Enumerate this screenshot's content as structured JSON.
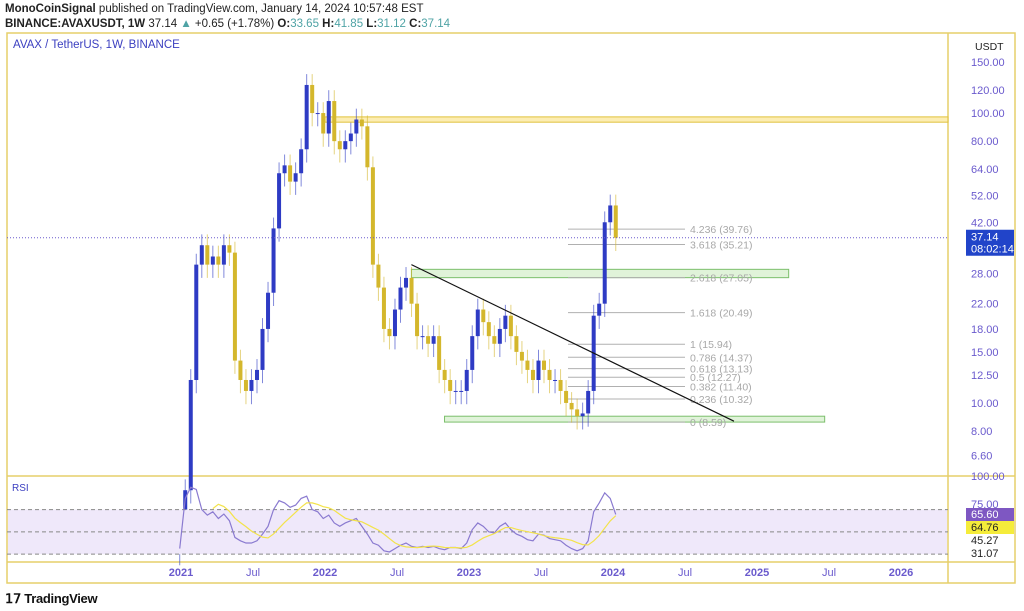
{
  "header": {
    "author": "MonoCoinSignal",
    "published": "published on TradingView.com, January 14, 2024 10:57:48 EST",
    "symbol": "BINANCE:AVAXUSDT, 1W",
    "last": "37.14",
    "change_arrow": "▲",
    "change": "+0.65 (+1.78%)",
    "o_label": "O:",
    "o": "33.65",
    "h_label": "H:",
    "h": "41.85",
    "l_label": "L:",
    "l": "31.12",
    "c_label": "C:",
    "c": "37.14"
  },
  "legend_title": "AVAX / TetherUS, 1W, BINANCE",
  "brand": "TradingView",
  "colors": {
    "up": "#2e3bc4",
    "down": "#d4b72c",
    "frame": "#e6cf6a",
    "axis_text": "#6a5acd",
    "price_tag": "#2144c9",
    "rsi_line": "#8a7ad0",
    "rsi_ma": "#f3e34a",
    "rsi_tag": "#7e57c2",
    "rsi_ma_tag": "#f5ec3a",
    "rsi_band": "#efe8fa",
    "zone_yellow": "#fbe8a0",
    "zone_green": "#d8f0d0"
  },
  "chart_data": [
    {
      "type": "candlestick",
      "title": "AVAX / TetherUS, 1W, BINANCE",
      "scale": "log",
      "ylabel": "USDT",
      "ylim": [
        5.5,
        165
      ],
      "xlim": [
        "2020-12",
        "2026-07"
      ],
      "y_ticks": [
        "150.00",
        "120.00",
        "100.00",
        "80.00",
        "64.00",
        "52.00",
        "42.00",
        "28.00",
        "22.00",
        "18.00",
        "15.00",
        "12.50",
        "10.00",
        "8.00",
        "6.60"
      ],
      "y_tick_values": [
        150,
        120,
        100,
        80,
        64,
        52,
        42,
        28,
        22,
        18,
        15,
        12.5,
        10,
        8,
        6.6
      ],
      "x_ticks": [
        {
          "label": "2021",
          "t": 2021.0
        },
        {
          "label": "Jul",
          "t": 2021.5
        },
        {
          "label": "2022",
          "t": 2022.0
        },
        {
          "label": "Jul",
          "t": 2022.5
        },
        {
          "label": "2023",
          "t": 2023.0
        },
        {
          "label": "Jul",
          "t": 2023.5
        },
        {
          "label": "2024",
          "t": 2024.0
        },
        {
          "label": "Jul",
          "t": 2024.5
        },
        {
          "label": "2025",
          "t": 2025.0
        },
        {
          "label": "Jul",
          "t": 2025.5
        },
        {
          "label": "2026",
          "t": 2026.0
        }
      ],
      "start": "2020-12-28",
      "interval_weeks": 2,
      "closes": [
        3.6,
        5,
        12,
        30,
        35,
        30,
        32,
        30,
        35,
        33,
        14,
        12,
        11,
        12,
        13,
        18,
        24,
        40,
        62,
        66,
        58,
        62,
        75,
        125,
        100,
        100,
        85,
        110,
        80,
        75,
        80,
        85,
        95,
        90,
        65,
        30,
        25,
        18,
        17,
        21,
        25,
        27,
        22,
        17,
        17,
        16,
        17,
        13,
        12,
        11,
        11,
        11,
        13,
        17,
        21,
        19,
        17,
        16,
        18,
        20,
        17,
        15,
        14,
        13,
        12,
        14,
        13,
        12,
        12,
        11,
        10,
        9.5,
        9,
        9.2,
        11,
        20,
        22,
        42,
        48,
        37.14
      ],
      "last_price": {
        "value": "37.14",
        "countdown": "08:02:14"
      },
      "zones": [
        {
          "color": "yellow",
          "from_t": 2022.0,
          "to_t": 2026.95,
          "low": 93,
          "high": 97
        },
        {
          "color": "green",
          "from_t": 2022.6,
          "to_t": 2025.22,
          "low": 27.05,
          "high": 28.9
        },
        {
          "color": "green",
          "from_t": 2022.83,
          "to_t": 2025.47,
          "low": 8.59,
          "high": 9.0
        }
      ],
      "trendline": {
        "from": {
          "t": 2022.6,
          "price": 30
        },
        "to": {
          "t": 2024.84,
          "price": 8.65
        }
      },
      "fib_levels": [
        {
          "label": "4.236 (39.76)",
          "price": 39.76
        },
        {
          "label": "3.618 (35.21)",
          "price": 35.21
        },
        {
          "label": "2.618 (27.05)",
          "price": 27.05
        },
        {
          "label": "1.618 (20.49)",
          "price": 20.49
        },
        {
          "label": "1 (15.94)",
          "price": 15.94
        },
        {
          "label": "0.786 (14.37)",
          "price": 14.37
        },
        {
          "label": "0.618 (13.13)",
          "price": 13.13
        },
        {
          "label": "0.5 (12.27)",
          "price": 12.27
        },
        {
          "label": "0.382 (11.40)",
          "price": 11.4
        },
        {
          "label": "0.236 (10.32)",
          "price": 10.32
        },
        {
          "label": "0 (8.59)",
          "price": 8.59
        }
      ]
    },
    {
      "type": "line",
      "title": "RSI",
      "ylim": [
        25,
        100
      ],
      "y_ticks": [
        "100.00",
        "75.00"
      ],
      "y_tick_values": [
        100,
        75
      ],
      "bands": [
        70,
        50,
        30
      ],
      "values": [
        35,
        80,
        90,
        88,
        70,
        65,
        68,
        62,
        66,
        60,
        45,
        42,
        40,
        40,
        42,
        48,
        55,
        70,
        78,
        76,
        72,
        74,
        80,
        82,
        70,
        68,
        62,
        65,
        58,
        55,
        58,
        60,
        62,
        55,
        48,
        40,
        38,
        33,
        32,
        35,
        38,
        40,
        37,
        36,
        37,
        36,
        37,
        35,
        34,
        36,
        36,
        35,
        40,
        52,
        58,
        55,
        50,
        49,
        55,
        58,
        52,
        48,
        46,
        43,
        42,
        48,
        47,
        44,
        43,
        42,
        38,
        35,
        33,
        35,
        42,
        68,
        76,
        85,
        80,
        65.6
      ],
      "labels": {
        "rsi": "65.60",
        "ma": "64.76",
        "upper": "45.27",
        "lower": "31.07"
      }
    }
  ]
}
